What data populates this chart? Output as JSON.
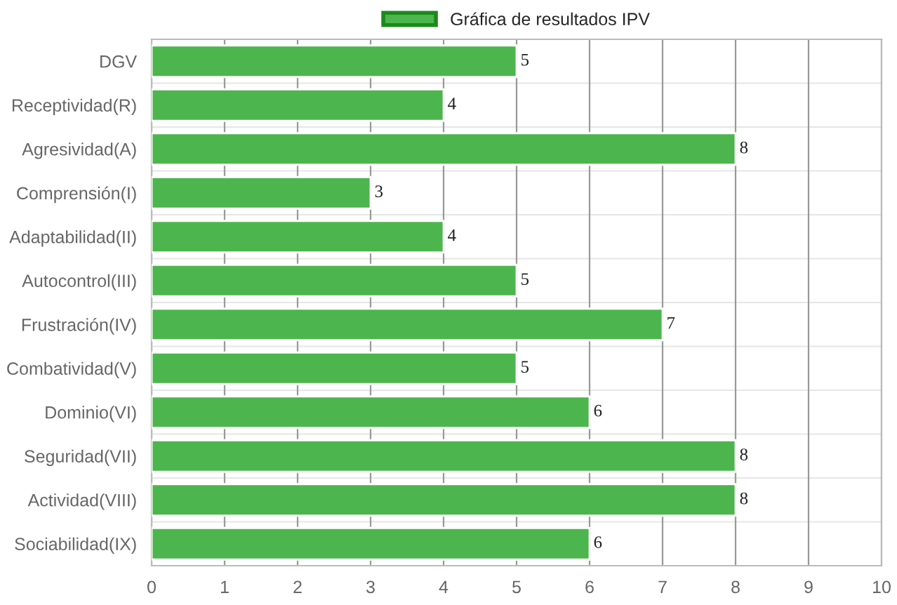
{
  "chart_data": {
    "type": "bar",
    "orientation": "horizontal",
    "categories": [
      "DGV",
      "Receptividad(R)",
      "Agresividad(A)",
      "Comprensión(I)",
      "Adaptabilidad(II)",
      "Autocontrol(III)",
      "Frustración(IV)",
      "Combatividad(V)",
      "Dominio(VI)",
      "Seguridad(VII)",
      "Actividad(VIII)",
      "Sociabilidad(IX)"
    ],
    "series": [
      {
        "name": "Gráfica de resultados IPV",
        "color": "#4db54d",
        "values": [
          5,
          4,
          8,
          3,
          4,
          5,
          7,
          5,
          6,
          8,
          8,
          6
        ]
      }
    ],
    "xlim": [
      0,
      10
    ],
    "xticks": [
      0,
      1,
      2,
      3,
      4,
      5,
      6,
      7,
      8,
      9,
      10
    ],
    "grid": true,
    "legend": "top",
    "data_labels": true
  }
}
